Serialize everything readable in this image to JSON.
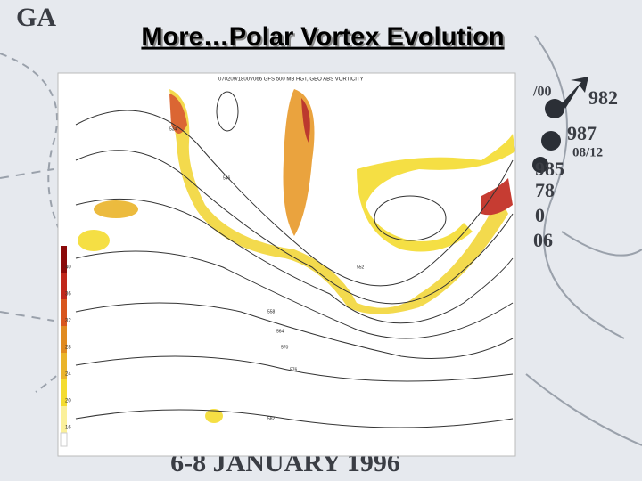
{
  "slide": {
    "title": "More…Polar Vortex Evolution",
    "background_texts": [
      "GA",
      "982",
      "987",
      "08/12",
      "985",
      "78",
      "0",
      "06",
      "/00",
      "6-8 JANUARY 1996"
    ],
    "map": {
      "header": "070209/1800V066 GFS 500 MB HGT, GEO ABS VORTICITY",
      "contour_labels": [
        "534",
        "546",
        "552",
        "558",
        "564",
        "570",
        "576",
        "582"
      ],
      "colorbar": {
        "labels": [
          "40",
          "36",
          "32",
          "28",
          "24",
          "20",
          "16"
        ],
        "colors": [
          "#8b0a0a",
          "#c0281c",
          "#d8561e",
          "#e08a20",
          "#eab42a",
          "#f4dc30",
          "#fbf09a"
        ]
      }
    }
  }
}
